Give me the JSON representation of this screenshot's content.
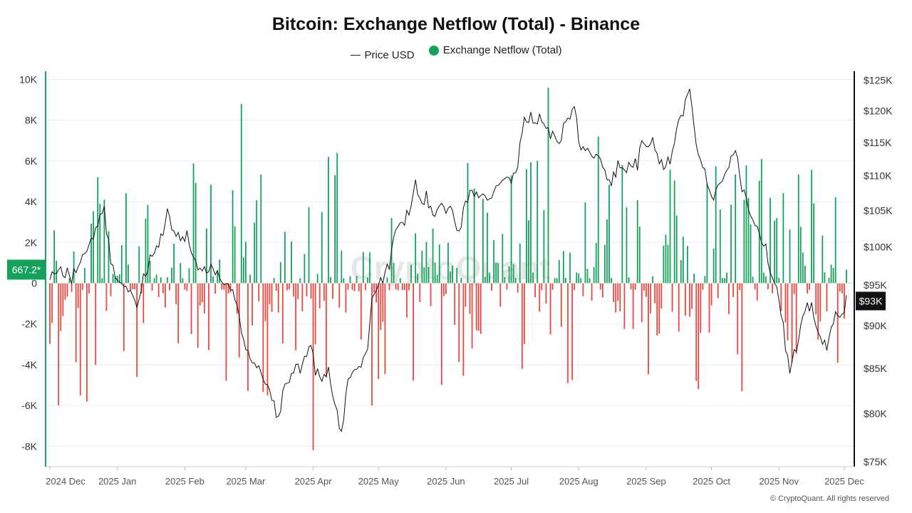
{
  "chart_data": {
    "type": "bar",
    "title": "Bitcoin: Exchange Netflow (Total) - Binance",
    "legend": [
      {
        "name": "Price USD",
        "kind": "line",
        "color": "#222222"
      },
      {
        "name": "Exchange Netflow (Total)",
        "kind": "bar",
        "color": "#16a05d"
      }
    ],
    "left_axis": {
      "ticks": [
        -8000,
        -6000,
        -4000,
        -2000,
        0,
        2000,
        4000,
        6000,
        8000,
        10000
      ],
      "tick_labels": [
        "-8K",
        "-6K",
        "-4K",
        "-2K",
        "0",
        "2K",
        "4K",
        "6K",
        "8K",
        "10K"
      ],
      "ylim": [
        -9000,
        10400
      ]
    },
    "right_axis": {
      "scale": "log",
      "ticks": [
        75000,
        80000,
        85000,
        90000,
        95000,
        100000,
        105000,
        110000,
        115000,
        120000,
        125000
      ],
      "tick_labels": [
        "$75K",
        "$80K",
        "$85K",
        "$90K",
        "$95K",
        "$100K",
        "$105K",
        "$110K",
        "$115K",
        "$120K",
        "$125K"
      ],
      "ylim": [
        74500,
        126500
      ]
    },
    "x_axis": {
      "months": [
        "2024 Dec",
        "2025 Jan",
        "2025 Feb",
        "2025 Mar",
        "2025 Apr",
        "2025 May",
        "2025 Jun",
        "2025 Jul",
        "2025 Aug",
        "2025 Sep",
        "2025 Oct",
        "2025 Nov",
        "2025 Dec"
      ],
      "month_start_days": [
        0,
        31,
        62,
        90,
        121,
        151,
        182,
        212,
        243,
        274,
        304,
        335,
        365
      ],
      "total_days": 367
    },
    "last_netflow_label": "667.2*",
    "last_price_label": "$93K",
    "positive_color": "#16a05d",
    "negative_color": "#e8473e",
    "watermark": "CryptoQuant",
    "price_anchors": [
      [
        0,
        96500
      ],
      [
        5,
        97200
      ],
      [
        10,
        96000
      ],
      [
        15,
        98500
      ],
      [
        20,
        101000
      ],
      [
        23,
        104500
      ],
      [
        25,
        104800
      ],
      [
        28,
        98000
      ],
      [
        32,
        95500
      ],
      [
        36,
        94000
      ],
      [
        40,
        92500
      ],
      [
        44,
        97000
      ],
      [
        48,
        99500
      ],
      [
        52,
        102000
      ],
      [
        54,
        104500
      ],
      [
        57,
        102500
      ],
      [
        60,
        100500
      ],
      [
        63,
        101500
      ],
      [
        66,
        98000
      ],
      [
        70,
        96500
      ],
      [
        74,
        97500
      ],
      [
        78,
        96000
      ],
      [
        82,
        95500
      ],
      [
        86,
        92500
      ],
      [
        89,
        88000
      ],
      [
        92,
        85500
      ],
      [
        94,
        86000
      ],
      [
        97,
        84000
      ],
      [
        100,
        83500
      ],
      [
        102,
        81500
      ],
      [
        105,
        79000
      ],
      [
        107,
        82000
      ],
      [
        110,
        84000
      ],
      [
        113,
        85500
      ],
      [
        115,
        85000
      ],
      [
        118,
        87000
      ],
      [
        120,
        87500
      ],
      [
        122,
        84500
      ],
      [
        125,
        83500
      ],
      [
        128,
        84500
      ],
      [
        130,
        81500
      ],
      [
        132,
        80000
      ],
      [
        134,
        78000
      ],
      [
        137,
        83500
      ],
      [
        140,
        84500
      ],
      [
        143,
        85500
      ],
      [
        146,
        87500
      ],
      [
        148,
        93000
      ],
      [
        150,
        94500
      ],
      [
        153,
        96000
      ],
      [
        156,
        97500
      ],
      [
        159,
        102500
      ],
      [
        162,
        103500
      ],
      [
        165,
        104500
      ],
      [
        168,
        109500
      ],
      [
        170,
        106000
      ],
      [
        173,
        107000
      ],
      [
        176,
        104500
      ],
      [
        179,
        106000
      ],
      [
        182,
        105500
      ],
      [
        185,
        104500
      ],
      [
        188,
        102000
      ],
      [
        190,
        104500
      ],
      [
        193,
        107500
      ],
      [
        196,
        107500
      ],
      [
        199,
        108000
      ],
      [
        202,
        106000
      ],
      [
        205,
        109000
      ],
      [
        208,
        108500
      ],
      [
        210,
        110000
      ],
      [
        212,
        108500
      ],
      [
        215,
        112000
      ],
      [
        217,
        117500
      ],
      [
        219,
        118500
      ],
      [
        221,
        119500
      ],
      [
        223,
        118000
      ],
      [
        226,
        119000
      ],
      [
        228,
        117500
      ],
      [
        231,
        116000
      ],
      [
        234,
        114500
      ],
      [
        236,
        117500
      ],
      [
        239,
        118500
      ],
      [
        241,
        121500
      ],
      [
        243,
        115000
      ],
      [
        246,
        114000
      ],
      [
        249,
        112500
      ],
      [
        252,
        113500
      ],
      [
        255,
        111000
      ],
      [
        258,
        109000
      ],
      [
        261,
        111500
      ],
      [
        264,
        110500
      ],
      [
        267,
        112000
      ],
      [
        270,
        111500
      ],
      [
        272,
        115500
      ],
      [
        275,
        115000
      ],
      [
        277,
        116000
      ],
      [
        279,
        113500
      ],
      [
        282,
        111000
      ],
      [
        285,
        112500
      ],
      [
        287,
        115500
      ],
      [
        289,
        118500
      ],
      [
        291,
        120000
      ],
      [
        293,
        123500
      ],
      [
        295,
        121500
      ],
      [
        297,
        114000
      ],
      [
        300,
        111000
      ],
      [
        303,
        108500
      ],
      [
        305,
        106500
      ],
      [
        308,
        108500
      ],
      [
        311,
        110500
      ],
      [
        313,
        113500
      ],
      [
        315,
        114500
      ],
      [
        318,
        108500
      ],
      [
        321,
        105500
      ],
      [
        324,
        103500
      ],
      [
        327,
        101500
      ],
      [
        330,
        98500
      ],
      [
        332,
        96500
      ],
      [
        334,
        94500
      ],
      [
        336,
        92000
      ],
      [
        338,
        87500
      ],
      [
        340,
        84500
      ],
      [
        342,
        86500
      ],
      [
        344,
        88000
      ],
      [
        346,
        90500
      ],
      [
        348,
        92000
      ],
      [
        350,
        92500
      ],
      [
        352,
        90500
      ],
      [
        354,
        88500
      ],
      [
        357,
        87000
      ],
      [
        360,
        90500
      ],
      [
        362,
        92000
      ],
      [
        364,
        91500
      ],
      [
        366,
        93000
      ]
    ]
  }
}
